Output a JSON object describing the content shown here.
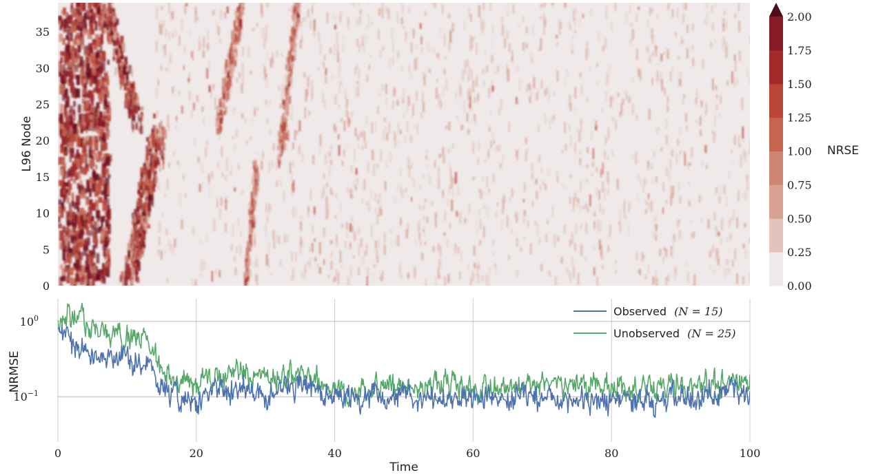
{
  "chart_data": [
    {
      "type": "heatmap",
      "title": "",
      "xlabel": "",
      "ylabel": "L96 Node",
      "xlim": [
        0,
        100
      ],
      "ylim": [
        0,
        39
      ],
      "yticks": [
        "0",
        "5",
        "10",
        "15",
        "20",
        "25",
        "30",
        "35"
      ],
      "colorbar": {
        "label": "NRSE",
        "levels": [
          "0.00",
          "0.25",
          "0.50",
          "0.75",
          "1.00",
          "1.25",
          "1.50",
          "1.75",
          "2.00"
        ],
        "colors": [
          "#efe9e9",
          "#e3c3bb",
          "#d7a294",
          "#cd8673",
          "#c5654f",
          "#b94637",
          "#a32a2b",
          "#861b28",
          "#6b1020"
        ],
        "extend": "max",
        "extend_color": "#4a0e18"
      }
    },
    {
      "type": "line",
      "title": "",
      "xlabel": "Time",
      "ylabel": "NRMSE",
      "yscale": "log",
      "xlim": [
        0,
        100
      ],
      "ylim": [
        0.025,
        2.0
      ],
      "xticks": [
        "0",
        "20",
        "40",
        "60",
        "80",
        "100"
      ],
      "yticks": [
        {
          "base": "10",
          "exp": "0"
        },
        {
          "base": "10",
          "exp": "−1"
        }
      ],
      "grid": true,
      "legend": "top-right",
      "series": [
        {
          "name": "Observed",
          "n_label": "(N = 15)",
          "color": "#4c72b0",
          "envelope": {
            "x": [
              0,
              2,
              5,
              8,
              11,
              13,
              15,
              18,
              22,
              26,
              30,
              35,
              40,
              50,
              60,
              70,
              80,
              90,
              96,
              100
            ],
            "y": [
              0.65,
              0.5,
              0.38,
              0.35,
              0.3,
              0.28,
              0.14,
              0.09,
              0.1,
              0.14,
              0.11,
              0.15,
              0.1,
              0.1,
              0.1,
              0.1,
              0.09,
              0.1,
              0.11,
              0.12
            ]
          }
        },
        {
          "name": "Unobserved",
          "n_label": "(N = 25)",
          "color": "#55a868",
          "envelope": {
            "x": [
              0,
              2,
              5,
              8,
              11,
              13,
              15,
              18,
              22,
              26,
              30,
              35,
              40,
              50,
              60,
              70,
              80,
              90,
              96,
              100
            ],
            "y": [
              1.15,
              1.1,
              0.8,
              0.7,
              0.65,
              0.55,
              0.22,
              0.14,
              0.16,
              0.2,
              0.17,
              0.22,
              0.12,
              0.14,
              0.14,
              0.14,
              0.13,
              0.14,
              0.15,
              0.17
            ]
          }
        }
      ]
    }
  ]
}
